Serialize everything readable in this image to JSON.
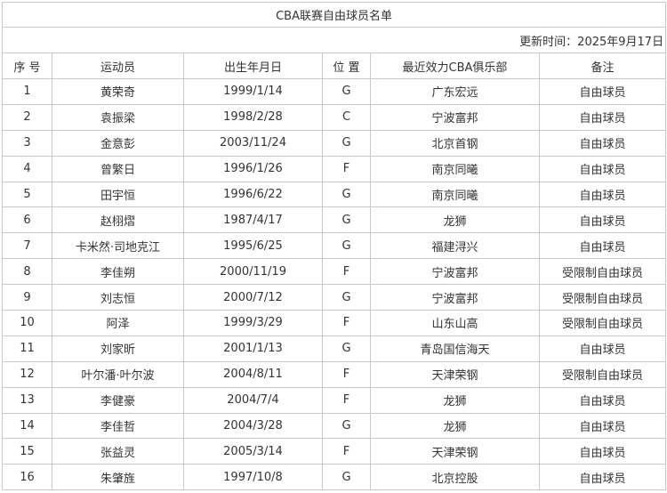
{
  "title": "CBA联赛自由球员名单",
  "update_time": "更新时间：2025年9月17日",
  "columns": [
    "序 号",
    "运动员",
    "出生年月日",
    "位 置",
    "最近效力CBA俱乐部",
    "备注"
  ],
  "rows": [
    [
      "1",
      "黄荣奇",
      "1999/1/14",
      "G",
      "广东宏远",
      "自由球员"
    ],
    [
      "2",
      "袁振梁",
      "1998/2/28",
      "C",
      "宁波富邦",
      "自由球员"
    ],
    [
      "3",
      "金意彭",
      "2003/11/24",
      "G",
      "北京首钢",
      "自由球员"
    ],
    [
      "4",
      "曾繁日",
      "1996/1/26",
      "F",
      "南京同曦",
      "自由球员"
    ],
    [
      "5",
      "田宇恒",
      "1996/6/22",
      "G",
      "南京同曦",
      "自由球员"
    ],
    [
      "6",
      "赵栩熠",
      "1987/4/17",
      "G",
      "龙狮",
      "自由球员"
    ],
    [
      "7",
      "卡米然·司地克江",
      "1995/6/25",
      "G",
      "福建浔兴",
      "自由球员"
    ],
    [
      "8",
      "李佳朔",
      "2000/11/19",
      "F",
      "宁波富邦",
      "受限制自由球员"
    ],
    [
      "9",
      "刘志恒",
      "2000/7/12",
      "G",
      "宁波富邦",
      "受限制自由球员"
    ],
    [
      "10",
      "阿泽",
      "1999/3/29",
      "F",
      "山东山高",
      "受限制自由球员"
    ],
    [
      "11",
      "刘家昕",
      "2001/1/13",
      "G",
      "青岛国信海天",
      "自由球员"
    ],
    [
      "12",
      "叶尔潘·叶尔波",
      "2004/8/11",
      "F",
      "天津荣钢",
      "受限制自由球员"
    ],
    [
      "13",
      "李健豪",
      "2004/7/4",
      "F",
      "龙狮",
      "自由球员"
    ],
    [
      "14",
      "李佳哲",
      "2004/3/28",
      "G",
      "龙狮",
      "自由球员"
    ],
    [
      "15",
      "张益灵",
      "2005/3/14",
      "F",
      "天津荣钢",
      "自由球员"
    ],
    [
      "16",
      "朱肇旌",
      "1997/10/8",
      "G",
      "北京控股",
      "自由球员"
    ]
  ]
}
